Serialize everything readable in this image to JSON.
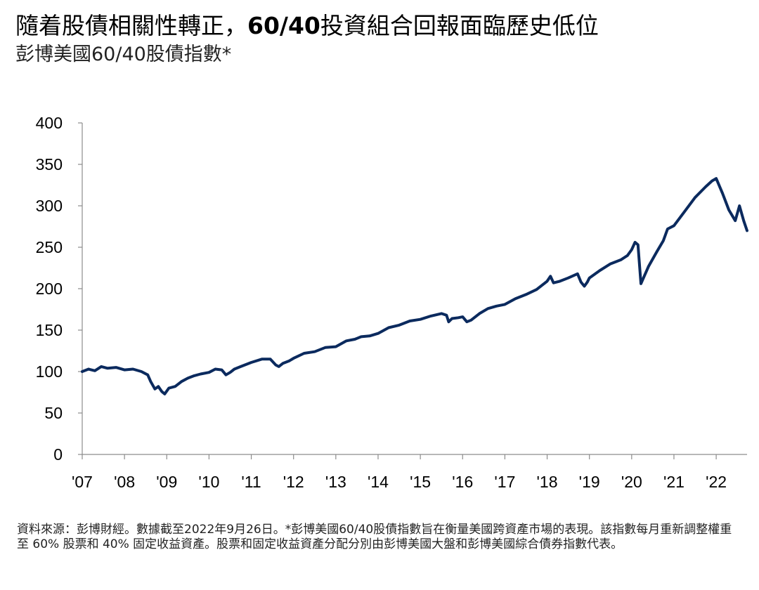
{
  "title": {
    "part1": "隨着股債相關性轉正，",
    "bold": "60/40",
    "part2": "投資組合回報面臨歷史低位"
  },
  "subtitle": "彭博美國60/40股債指數*",
  "source": "資料來源：彭博財經。數據截至2022年9月26日。*彭博美國60/40股債指數旨在衡量美國跨資產市場的表現。該指數每月重新調整權重至 60% 股票和 40% 固定收益資產。股票和固定收益資產分配分別由彭博美國大盤和彭博美國綜合債券指數代表。",
  "colors": {
    "line": "#0b2a5e",
    "axis": "#8c8c8c"
  },
  "chart_data": {
    "type": "line",
    "ylim": [
      0,
      400
    ],
    "yticks": [
      "0",
      "50",
      "100",
      "150",
      "200",
      "250",
      "300",
      "350",
      "400"
    ],
    "xlim": [
      2007.0,
      2022.73
    ],
    "xticks": [
      {
        "label": "'07",
        "x": 2007
      },
      {
        "label": "'08",
        "x": 2008
      },
      {
        "label": "'09",
        "x": 2009
      },
      {
        "label": "'10",
        "x": 2010
      },
      {
        "label": "'11",
        "x": 2011
      },
      {
        "label": "'12",
        "x": 2012
      },
      {
        "label": "'13",
        "x": 2013
      },
      {
        "label": "'14",
        "x": 2014
      },
      {
        "label": "'15",
        "x": 2015
      },
      {
        "label": "'16",
        "x": 2016
      },
      {
        "label": "'17",
        "x": 2017
      },
      {
        "label": "'18",
        "x": 2018
      },
      {
        "label": "'19",
        "x": 2019
      },
      {
        "label": "'20",
        "x": 2020
      },
      {
        "label": "'21",
        "x": 2021
      },
      {
        "label": "'22",
        "x": 2022
      }
    ],
    "grid": false,
    "series": [
      {
        "x": [
          2007.0,
          2007.15,
          2007.3,
          2007.45,
          2007.6,
          2007.8,
          2008.0,
          2008.2,
          2008.4,
          2008.55,
          2008.62,
          2008.72,
          2008.8,
          2008.88,
          2008.95,
          2009.05,
          2009.2,
          2009.35,
          2009.5,
          2009.65,
          2009.8,
          2010.0,
          2010.15,
          2010.3,
          2010.4,
          2010.5,
          2010.6,
          2010.75,
          2011.0,
          2011.25,
          2011.45,
          2011.58,
          2011.65,
          2011.75,
          2011.9,
          2012.0,
          2012.25,
          2012.5,
          2012.75,
          2013.0,
          2013.25,
          2013.45,
          2013.6,
          2013.8,
          2014.0,
          2014.25,
          2014.5,
          2014.75,
          2015.0,
          2015.25,
          2015.5,
          2015.62,
          2015.67,
          2015.75,
          2015.9,
          2016.0,
          2016.1,
          2016.2,
          2016.4,
          2016.6,
          2016.8,
          2017.0,
          2017.25,
          2017.5,
          2017.75,
          2018.0,
          2018.08,
          2018.15,
          2018.3,
          2018.5,
          2018.72,
          2018.8,
          2018.88,
          2018.95,
          2019.0,
          2019.25,
          2019.5,
          2019.75,
          2019.9,
          2020.0,
          2020.08,
          2020.15,
          2020.22,
          2020.4,
          2020.6,
          2020.75,
          2020.85,
          2021.0,
          2021.25,
          2021.5,
          2021.75,
          2021.9,
          2022.0,
          2022.15,
          2022.3,
          2022.45,
          2022.55,
          2022.65,
          2022.73
        ],
        "y": [
          100,
          103,
          101,
          106,
          104,
          105,
          102,
          103,
          100,
          96,
          88,
          79,
          82,
          76,
          73,
          80,
          82,
          88,
          92,
          95,
          97,
          99,
          103,
          102,
          96,
          99,
          103,
          106,
          111,
          115,
          115,
          108,
          106,
          110,
          113,
          116,
          122,
          124,
          129,
          130,
          137,
          139,
          142,
          143,
          146,
          153,
          156,
          161,
          163,
          167,
          170,
          168,
          160,
          164,
          165,
          166,
          160,
          162,
          170,
          176,
          179,
          181,
          188,
          193,
          199,
          209,
          215,
          207,
          209,
          213,
          218,
          208,
          203,
          208,
          213,
          222,
          230,
          235,
          240,
          247,
          256,
          253,
          206,
          227,
          245,
          258,
          272,
          276,
          293,
          310,
          323,
          330,
          333,
          315,
          295,
          282,
          300,
          282,
          270
        ]
      }
    ]
  }
}
